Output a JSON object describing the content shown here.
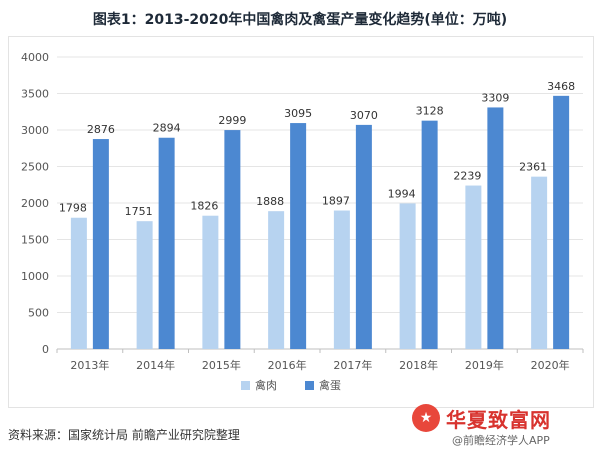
{
  "title": "图表1：2013-2020年中国禽肉及禽蛋产量变化趋势(单位：万吨)",
  "source": "资料来源：国家统计局 前瞻产业研究院整理",
  "watermark": {
    "logo_text": "★",
    "title": "华夏致富网",
    "subtitle": "@前瞻经济学人APP"
  },
  "colors": {
    "series_meat": "#b7d3f0",
    "series_egg": "#4c88d1",
    "grid": "#e5e5e5",
    "axis_text": "#555555"
  },
  "chart_data": {
    "type": "bar",
    "title": "图表1：2013-2020年中国禽肉及禽蛋产量变化趋势(单位：万吨)",
    "categories": [
      "2013年",
      "2014年",
      "2015年",
      "2016年",
      "2017年",
      "2018年",
      "2019年",
      "2020年"
    ],
    "series": [
      {
        "name": "禽肉",
        "values": [
          1798,
          1751,
          1826,
          1888,
          1897,
          1994,
          2239,
          2361
        ]
      },
      {
        "name": "禽蛋",
        "values": [
          2876,
          2894,
          2999,
          3095,
          3070,
          3128,
          3309,
          3468
        ]
      }
    ],
    "ylim": [
      0,
      4000
    ],
    "yticks": [
      0,
      500,
      1000,
      1500,
      2000,
      2500,
      3000,
      3500,
      4000
    ],
    "grid": true,
    "legend": "bottom-center",
    "xlabel": "",
    "ylabel": ""
  }
}
